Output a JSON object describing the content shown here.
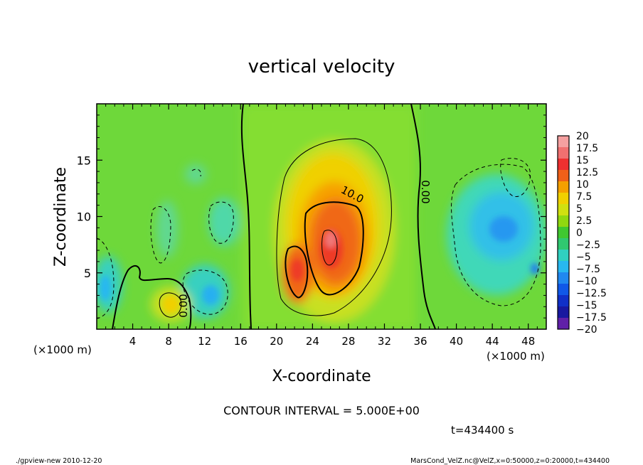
{
  "chart_data": {
    "type": "heatmap",
    "title": "vertical velocity",
    "xlabel": "X-coordinate",
    "ylabel": "Z-coordinate",
    "x_unit": "(×1000 m)",
    "x_unit_right": "(×1000 m)",
    "xlim": [
      0,
      50
    ],
    "ylim": [
      0,
      20
    ],
    "x_ticks": [
      4,
      8,
      12,
      16,
      20,
      24,
      28,
      32,
      36,
      40,
      44,
      48
    ],
    "y_ticks": [
      5,
      10,
      15
    ],
    "colorbar": {
      "labels": [
        "20",
        "17.5",
        "15",
        "12.5",
        "10",
        "7.5",
        "5",
        "2.5",
        "0",
        "−2.5",
        "−5",
        "−7.5",
        "−10",
        "−12.5",
        "−15",
        "−17.5",
        "−20"
      ],
      "colors": [
        "#f5a0a0",
        "#f07070",
        "#ee3030",
        "#f06018",
        "#f5a000",
        "#f0d000",
        "#d0e010",
        "#90d810",
        "#40c830",
        "#30c870",
        "#30d0c0",
        "#28b8f0",
        "#2088f0",
        "#1058e8",
        "#1030c8",
        "#1818a0",
        "#6020a8"
      ]
    },
    "contour_labels": [
      "10.0",
      "0.00",
      "0.00"
    ],
    "contour_interval_text": "CONTOUR INTERVAL = 5.000E+00",
    "time_text": "t=434400 s",
    "footer_left": "./gpview-new  2010-12-20",
    "footer_right": "MarsCond_VelZ.nc@VelZ,x=0:50000,z=0:20000,t=434400"
  }
}
